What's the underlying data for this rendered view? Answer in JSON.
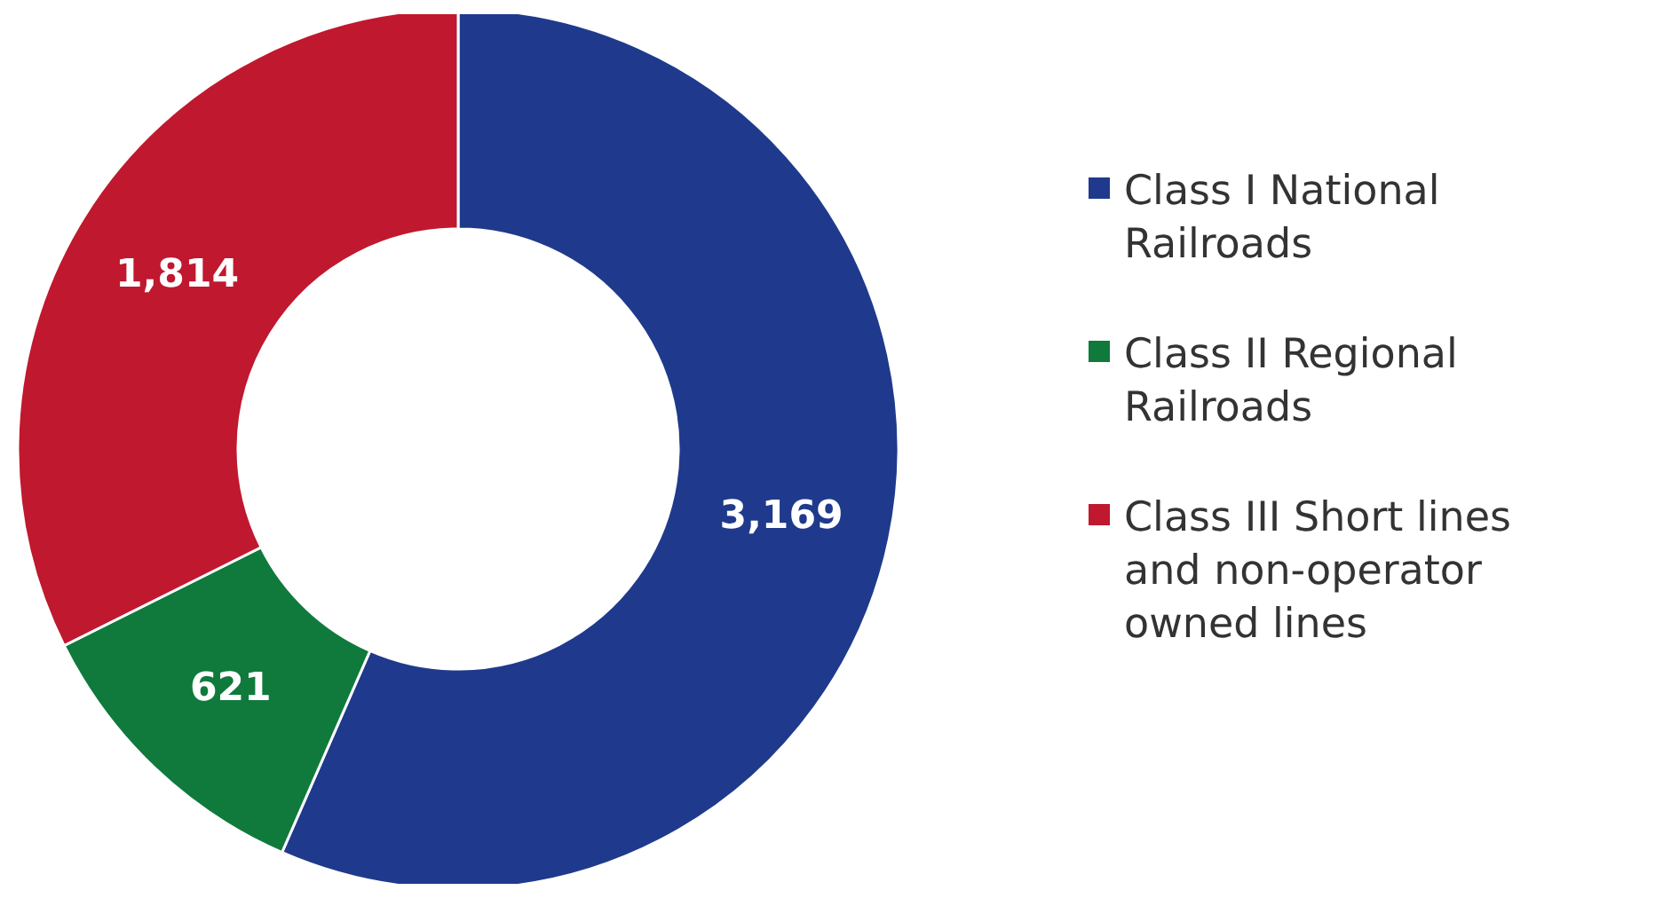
{
  "chart_data": {
    "type": "donut",
    "categories": [
      "Class I National Railroads",
      "Class II Regional Railroads",
      "Class III Short lines and non-operator owned lines"
    ],
    "values": [
      3169,
      621,
      1814
    ],
    "colors": [
      "#1f3a8c",
      "#0f7a3c",
      "#c0182e"
    ],
    "value_labels": [
      "3,169",
      "621",
      "1,814"
    ],
    "legend": "right"
  }
}
